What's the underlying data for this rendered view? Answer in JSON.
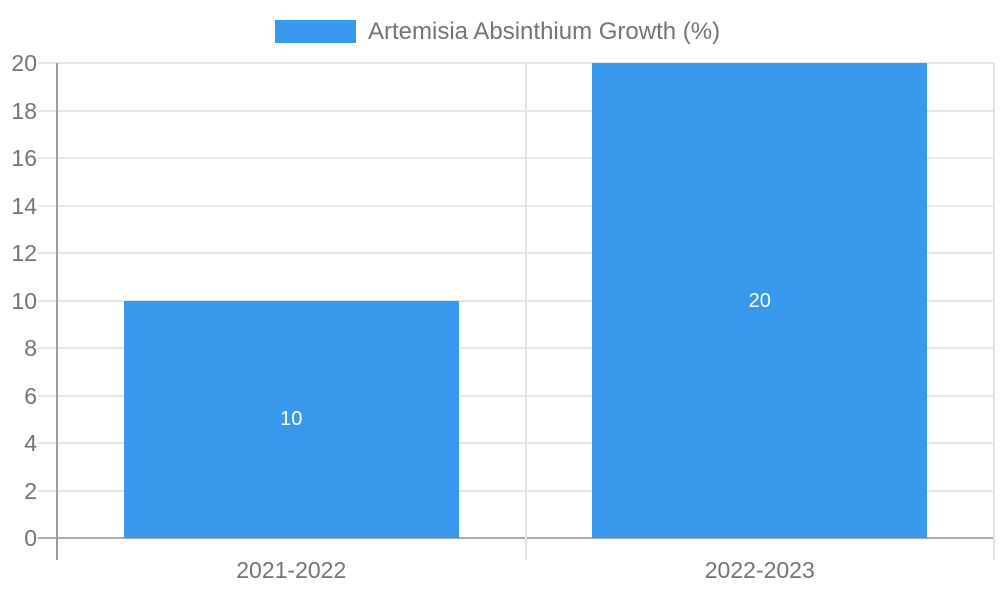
{
  "legend": {
    "label": "Artemisia Absinthium Growth (%)"
  },
  "chart_data": {
    "type": "bar",
    "title": "Artemisia Absinthium Growth (%)",
    "categories": [
      "2021-2022",
      "2022-2023"
    ],
    "values": [
      10,
      20
    ],
    "bar_value_labels": [
      "10",
      "20"
    ],
    "xlabel": "",
    "ylabel": "",
    "ylim": [
      0,
      20
    ],
    "yticks": [
      0,
      2,
      4,
      6,
      8,
      10,
      12,
      14,
      16,
      18,
      20
    ],
    "grid": true,
    "legend_position": "top-center",
    "colors": {
      "bar": "#3899ec",
      "gridline": "#e6e6e6",
      "axis_line": "#9c9c9c",
      "baseline": "#a9a9a9",
      "divider": "#e3e3e3",
      "tick_text": "#737373",
      "bar_label": "#ffffff",
      "background": "#ffffff"
    }
  }
}
